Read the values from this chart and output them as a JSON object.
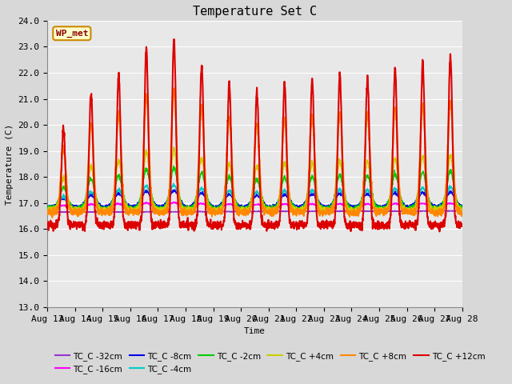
{
  "title": "Temperature Set C",
  "xlabel": "Time",
  "ylabel": "Temperature (C)",
  "ylim": [
    13.0,
    24.0
  ],
  "yticks": [
    13.0,
    14.0,
    15.0,
    16.0,
    17.0,
    18.0,
    19.0,
    20.0,
    21.0,
    22.0,
    23.0,
    24.0
  ],
  "xtick_labels": [
    "Aug 13",
    "Aug 14",
    "Aug 15",
    "Aug 16",
    "Aug 17",
    "Aug 18",
    "Aug 19",
    "Aug 20",
    "Aug 21",
    "Aug 22",
    "Aug 23",
    "Aug 24",
    "Aug 25",
    "Aug 26",
    "Aug 27",
    "Aug 28"
  ],
  "wp_met_label": "WP_met",
  "series": {
    "TC_C -32cm": {
      "color": "#9933cc",
      "lw": 1.0,
      "zorder": 2
    },
    "TC_C -16cm": {
      "color": "#ff00ff",
      "lw": 1.0,
      "zorder": 3
    },
    "TC_C -8cm": {
      "color": "#0000ee",
      "lw": 1.2,
      "zorder": 4
    },
    "TC_C -4cm": {
      "color": "#00cccc",
      "lw": 1.2,
      "zorder": 5
    },
    "TC_C -2cm": {
      "color": "#00cc00",
      "lw": 1.2,
      "zorder": 6
    },
    "TC_C +4cm": {
      "color": "#cccc00",
      "lw": 1.2,
      "zorder": 7
    },
    "TC_C +8cm": {
      "color": "#ff8800",
      "lw": 1.5,
      "zorder": 8
    },
    "TC_C +12cm": {
      "color": "#dd0000",
      "lw": 1.5,
      "zorder": 9
    }
  },
  "bg_color": "#d8d8d8",
  "plot_bg": "#e8e8e8",
  "grid_color": "#ffffff",
  "title_fontsize": 11,
  "axis_fontsize": 8,
  "tick_fontsize": 8,
  "legend_ncol_row1": 6,
  "legend_ncol_row2": 2
}
